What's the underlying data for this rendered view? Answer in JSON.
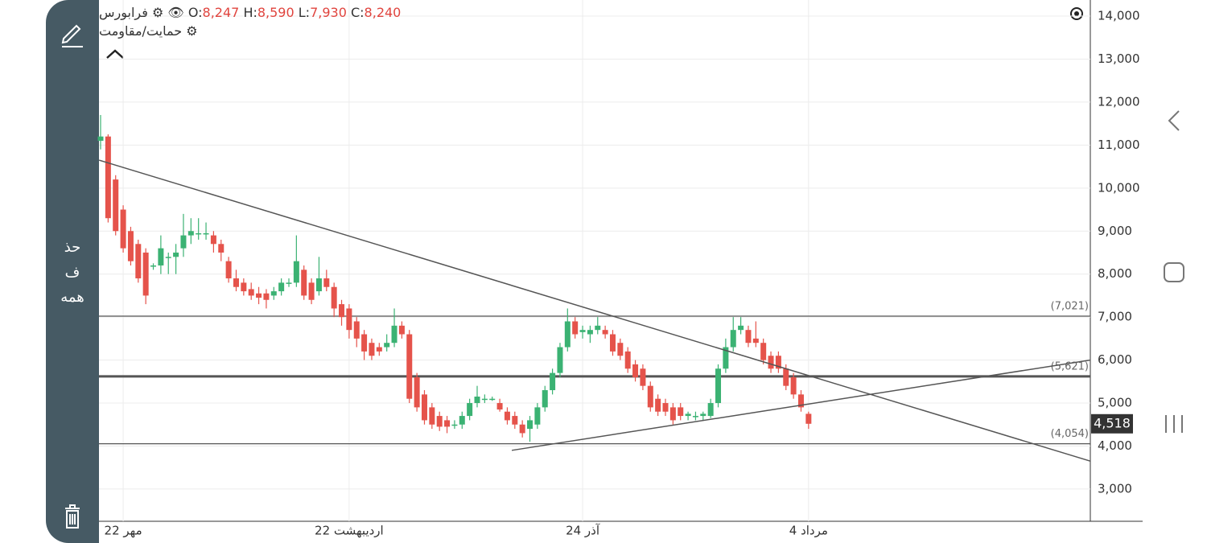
{
  "header": {
    "symbol": "فرابورس",
    "ohlc": [
      {
        "key": "O:",
        "value": "8,247"
      },
      {
        "key": "H:",
        "value": "8,590"
      },
      {
        "key": "L:",
        "value": "7,930"
      },
      {
        "key": "C:",
        "value": "8,240"
      }
    ],
    "indicator": "حمایت/مقاومت"
  },
  "sidebar": {
    "delete_all": [
      "حذ",
      "ف",
      "همه"
    ]
  },
  "chart_data": {
    "type": "candlestick",
    "categories": [
      null,
      null,
      null,
      "22 مهر",
      null,
      null,
      null,
      null,
      null,
      null,
      null,
      null,
      null,
      null,
      null,
      null,
      null,
      null,
      null,
      null,
      null,
      null,
      null,
      null,
      null,
      null,
      null,
      null,
      null,
      null,
      null,
      null,
      null,
      "22 اردیبهشت",
      null,
      null,
      null,
      null,
      null,
      null,
      null,
      null,
      null,
      null,
      null,
      null,
      null,
      null,
      null,
      null,
      null,
      null,
      null,
      null,
      null,
      null,
      null,
      null,
      null,
      null,
      null,
      null,
      null,
      null,
      "24 آذر",
      null,
      null,
      null,
      null,
      null,
      null,
      null,
      null,
      null,
      null,
      null,
      null,
      null,
      null,
      null,
      null,
      null,
      null,
      null,
      null,
      null,
      null,
      null,
      null,
      null,
      null,
      null,
      null,
      null,
      "4 مرداد"
    ],
    "open": [
      11100,
      11200,
      10200,
      9500,
      9000,
      8700,
      8500,
      8200,
      8200,
      8400,
      8400,
      8600,
      8900,
      8950,
      8950,
      8900,
      8700,
      8300,
      7900,
      7800,
      7650,
      7550,
      7550,
      7500,
      7600,
      7800,
      7800,
      8100,
      7800,
      7600,
      7900,
      7700,
      7300,
      7200,
      6900,
      6600,
      6400,
      6300,
      6300,
      6400,
      6800,
      6600,
      5600,
      5200,
      4900,
      4700,
      4600,
      4500,
      4500,
      4700,
      5000,
      5100,
      5100,
      5000,
      4800,
      4700,
      4500,
      4400,
      4500,
      4900,
      5300,
      5700,
      6300,
      6900,
      6650,
      6600,
      6700,
      6700,
      6600,
      6400,
      6200,
      5900,
      5800,
      5400,
      5100,
      5000,
      4900,
      4900,
      4700,
      4700,
      4700,
      4700,
      5000,
      5800,
      6300,
      6700,
      6700,
      6500,
      6400,
      6100,
      6100,
      5800,
      5600,
      5200,
      4750
    ],
    "high": [
      11700,
      11250,
      10300,
      9600,
      9100,
      8800,
      8600,
      8250,
      8900,
      8500,
      8700,
      9400,
      9300,
      9300,
      9200,
      9000,
      8800,
      8400,
      8100,
      7900,
      7800,
      7700,
      7650,
      7700,
      7900,
      7900,
      8900,
      8200,
      7900,
      8400,
      8100,
      7800,
      7400,
      7300,
      7000,
      6700,
      6500,
      6400,
      6600,
      7200,
      6900,
      6700,
      5700,
      5300,
      5000,
      4800,
      4700,
      4600,
      4800,
      5100,
      5400,
      5200,
      5150,
      5100,
      4900,
      4800,
      4600,
      4700,
      5000,
      5400,
      5800,
      6400,
      7200,
      7000,
      6800,
      6800,
      7000,
      6800,
      6700,
      6500,
      6300,
      6000,
      5900,
      5500,
      5200,
      5100,
      5000,
      5000,
      4800,
      4800,
      4800,
      5100,
      5900,
      6500,
      7000,
      7000,
      6800,
      6900,
      6500,
      6200,
      6200,
      5900,
      5700,
      5300,
      4800
    ],
    "low": [
      10900,
      9200,
      8900,
      8500,
      8200,
      7800,
      7300,
      8100,
      8000,
      8000,
      8000,
      8400,
      8700,
      8800,
      8800,
      8500,
      8300,
      7800,
      7600,
      7500,
      7400,
      7300,
      7200,
      7400,
      7500,
      7700,
      7700,
      7400,
      7300,
      7500,
      7600,
      7000,
      6800,
      6500,
      6300,
      6000,
      6000,
      6100,
      6200,
      6300,
      6500,
      5000,
      4800,
      4500,
      4400,
      4350,
      4300,
      4400,
      4400,
      4600,
      4900,
      5000,
      5050,
      4800,
      4500,
      4400,
      4200,
      4100,
      4400,
      4800,
      5200,
      5600,
      6200,
      6500,
      6500,
      6400,
      6600,
      6500,
      6100,
      6000,
      5700,
      5500,
      5300,
      4800,
      4700,
      4700,
      4500,
      4600,
      4600,
      4600,
      4600,
      4650,
      4900,
      5700,
      6200,
      6600,
      6300,
      6300,
      5900,
      5700,
      5700,
      5300,
      5100,
      4800,
      4400
    ],
    "close": [
      11200,
      9300,
      9000,
      8600,
      8300,
      7900,
      7500,
      8200,
      8600,
      8400,
      8500,
      8900,
      9000,
      8950,
      8950,
      8700,
      8500,
      7900,
      7700,
      7600,
      7500,
      7450,
      7400,
      7600,
      7800,
      7800,
      8300,
      7500,
      7400,
      7900,
      7700,
      7200,
      7000,
      6700,
      6500,
      6200,
      6100,
      6200,
      6400,
      6800,
      6600,
      5100,
      4900,
      4600,
      4500,
      4450,
      4450,
      4500,
      4700,
      5000,
      5150,
      5100,
      5100,
      4850,
      4600,
      4500,
      4300,
      4600,
      4900,
      5300,
      5700,
      6300,
      6900,
      6600,
      6700,
      6700,
      6800,
      6600,
      6200,
      6100,
      5800,
      5600,
      5400,
      4900,
      4800,
      4800,
      4600,
      4700,
      4750,
      4700,
      4750,
      5000,
      5800,
      6300,
      6700,
      6800,
      6400,
      6400,
      6000,
      5800,
      5800,
      5400,
      5200,
      4900,
      4518
    ],
    "up_color": "#3bb273",
    "down_color": "#e5534b",
    "last_price_label": "4,518",
    "levels": [
      {
        "value": 7021,
        "label": "(7,021)"
      },
      {
        "value": 5621,
        "label": "(5,621)"
      },
      {
        "value": 4054,
        "label": "(4,054)"
      }
    ],
    "trendlines": [
      {
        "x": [
          -0.2,
          131.4
        ],
        "y": [
          10650,
          3650
        ]
      },
      {
        "x": [
          54.6,
          131.4
        ],
        "y": [
          3900,
          6000
        ]
      }
    ],
    "ylim": [
      2250,
      14375
    ],
    "yticks": [
      {
        "value": 3000,
        "label": "3,000"
      },
      {
        "value": 4000,
        "label": "4,000"
      },
      {
        "value": 5000,
        "label": "5,000"
      },
      {
        "value": 6000,
        "label": "6,000"
      },
      {
        "value": 7000,
        "label": "7,000"
      },
      {
        "value": 8000,
        "label": "8,000"
      },
      {
        "value": 9000,
        "label": "9,000"
      },
      {
        "value": 10000,
        "label": "10,000"
      },
      {
        "value": 11000,
        "label": "11,000"
      },
      {
        "value": 12000,
        "label": "12,000"
      },
      {
        "value": 13000,
        "label": "13,000"
      },
      {
        "value": 14000,
        "label": "14,000"
      }
    ],
    "grid": true
  }
}
